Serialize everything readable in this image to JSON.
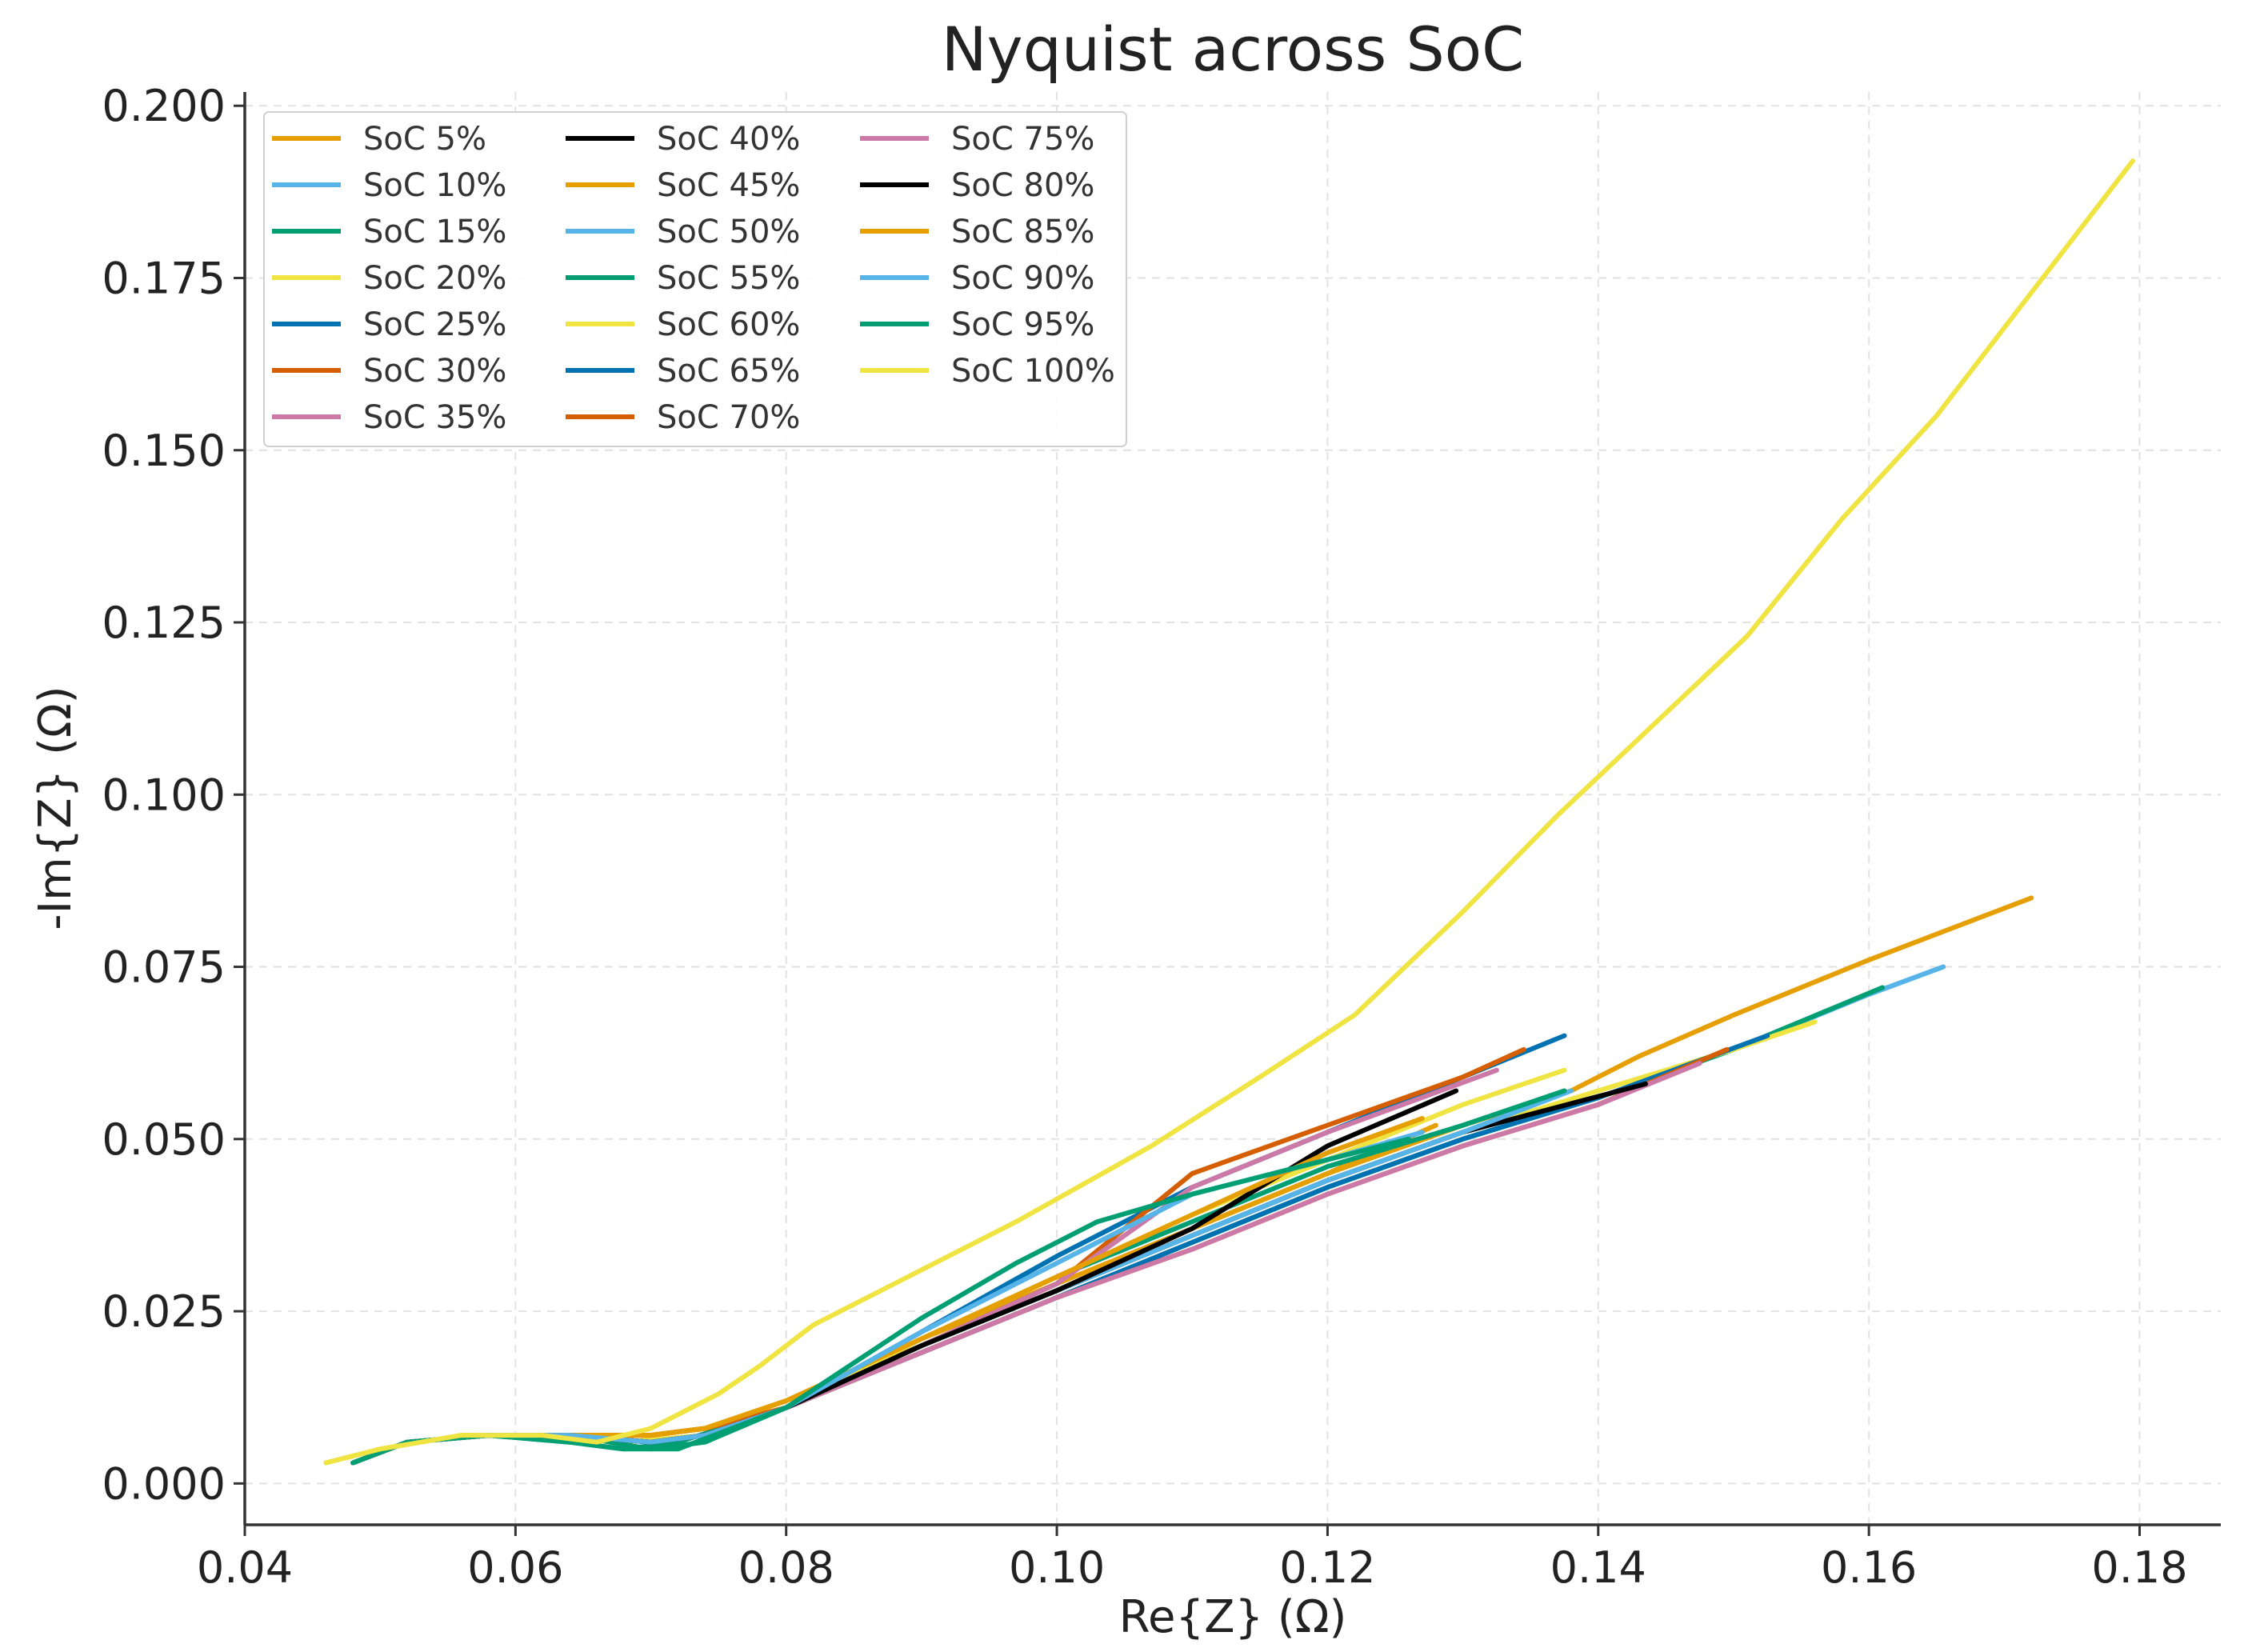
{
  "chart_data": {
    "type": "line",
    "title": "Nyquist across SoC",
    "xlabel": "Re{Z} (Ω)",
    "ylabel": "-Im{Z} (Ω)",
    "xlim": [
      0.04,
      0.186
    ],
    "ylim": [
      -0.006,
      0.202
    ],
    "xticks": [
      0.04,
      0.06,
      0.08,
      0.1,
      0.12,
      0.14,
      0.16,
      0.18
    ],
    "xtick_labels": [
      "0.04",
      "0.06",
      "0.08",
      "0.10",
      "0.12",
      "0.14",
      "0.16",
      "0.18"
    ],
    "yticks": [
      0.0,
      0.025,
      0.05,
      0.075,
      0.1,
      0.125,
      0.15,
      0.175,
      0.2
    ],
    "ytick_labels": [
      "0.000",
      "0.025",
      "0.050",
      "0.075",
      "0.100",
      "0.125",
      "0.150",
      "0.175",
      "0.200"
    ],
    "grid": true,
    "legend_position": "top-left",
    "legend_columns": 3,
    "series": [
      {
        "name": "SoC 5%",
        "color": "#E69F00",
        "x": [
          0.048,
          0.052,
          0.058,
          0.064,
          0.07,
          0.074,
          0.08,
          0.09,
          0.1,
          0.11,
          0.12,
          0.13,
          0.138,
          0.143,
          0.15,
          0.16,
          0.172
        ],
        "y": [
          0.003,
          0.006,
          0.007,
          0.007,
          0.007,
          0.008,
          0.012,
          0.02,
          0.028,
          0.037,
          0.045,
          0.052,
          0.057,
          0.062,
          0.068,
          0.076,
          0.085
        ]
      },
      {
        "name": "SoC 10%",
        "color": "#56B4E9",
        "x": [
          0.048,
          0.052,
          0.058,
          0.064,
          0.07,
          0.074,
          0.08,
          0.09,
          0.1,
          0.11,
          0.12,
          0.13,
          0.14,
          0.15,
          0.16,
          0.1655
        ],
        "y": [
          0.003,
          0.006,
          0.007,
          0.007,
          0.006,
          0.007,
          0.011,
          0.019,
          0.027,
          0.035,
          0.043,
          0.05,
          0.056,
          0.063,
          0.071,
          0.075
        ]
      },
      {
        "name": "SoC 15%",
        "color": "#009E73",
        "x": [
          0.048,
          0.052,
          0.058,
          0.064,
          0.068,
          0.072,
          0.08,
          0.09,
          0.1,
          0.11,
          0.12,
          0.13,
          0.14,
          0.15,
          0.161
        ],
        "y": [
          0.003,
          0.006,
          0.007,
          0.006,
          0.005,
          0.006,
          0.011,
          0.019,
          0.027,
          0.035,
          0.043,
          0.05,
          0.056,
          0.063,
          0.072
        ]
      },
      {
        "name": "SoC 20%",
        "color": "#F0E442",
        "x": [
          0.046,
          0.05,
          0.056,
          0.062,
          0.068,
          0.074,
          0.08,
          0.09,
          0.1,
          0.11,
          0.12,
          0.13,
          0.14,
          0.15,
          0.156
        ],
        "y": [
          0.003,
          0.005,
          0.007,
          0.007,
          0.006,
          0.007,
          0.011,
          0.02,
          0.028,
          0.036,
          0.044,
          0.051,
          0.057,
          0.063,
          0.067
        ]
      },
      {
        "name": "SoC 25%",
        "color": "#0072B2",
        "x": [
          0.048,
          0.052,
          0.058,
          0.064,
          0.07,
          0.074,
          0.08,
          0.09,
          0.1,
          0.11,
          0.12,
          0.13,
          0.14,
          0.1525
        ],
        "y": [
          0.003,
          0.006,
          0.007,
          0.007,
          0.006,
          0.007,
          0.011,
          0.019,
          0.027,
          0.035,
          0.043,
          0.05,
          0.056,
          0.065
        ]
      },
      {
        "name": "SoC 30%",
        "color": "#D55E00",
        "x": [
          0.048,
          0.052,
          0.058,
          0.064,
          0.07,
          0.074,
          0.08,
          0.09,
          0.1,
          0.11,
          0.12,
          0.13,
          0.14,
          0.1495
        ],
        "y": [
          0.003,
          0.006,
          0.007,
          0.007,
          0.007,
          0.008,
          0.011,
          0.019,
          0.027,
          0.034,
          0.042,
          0.049,
          0.055,
          0.063
        ]
      },
      {
        "name": "SoC 35%",
        "color": "#CC79A7",
        "x": [
          0.048,
          0.052,
          0.058,
          0.064,
          0.07,
          0.074,
          0.08,
          0.09,
          0.1,
          0.11,
          0.12,
          0.13,
          0.14,
          0.1475
        ],
        "y": [
          0.003,
          0.006,
          0.007,
          0.007,
          0.006,
          0.007,
          0.011,
          0.019,
          0.027,
          0.034,
          0.042,
          0.049,
          0.055,
          0.061
        ]
      },
      {
        "name": "SoC 40%",
        "color": "#000000",
        "x": [
          0.048,
          0.052,
          0.058,
          0.064,
          0.07,
          0.074,
          0.08,
          0.09,
          0.1,
          0.11,
          0.12,
          0.13,
          0.1435
        ],
        "y": [
          0.003,
          0.006,
          0.007,
          0.007,
          0.006,
          0.007,
          0.011,
          0.02,
          0.028,
          0.036,
          0.044,
          0.051,
          0.058
        ]
      },
      {
        "name": "SoC 45%",
        "color": "#E69F00",
        "x": [
          0.048,
          0.052,
          0.058,
          0.064,
          0.07,
          0.074,
          0.08,
          0.09,
          0.1,
          0.11,
          0.12,
          0.128
        ],
        "y": [
          0.003,
          0.006,
          0.007,
          0.007,
          0.007,
          0.008,
          0.012,
          0.021,
          0.029,
          0.037,
          0.045,
          0.052
        ]
      },
      {
        "name": "SoC 50%",
        "color": "#56B4E9",
        "x": [
          0.048,
          0.052,
          0.058,
          0.064,
          0.07,
          0.074,
          0.08,
          0.09,
          0.1,
          0.11,
          0.12,
          0.13,
          0.138
        ],
        "y": [
          0.003,
          0.006,
          0.007,
          0.007,
          0.006,
          0.007,
          0.011,
          0.02,
          0.028,
          0.036,
          0.044,
          0.051,
          0.057
        ]
      },
      {
        "name": "SoC 55%",
        "color": "#009E73",
        "x": [
          0.048,
          0.052,
          0.058,
          0.064,
          0.07,
          0.074,
          0.08,
          0.09,
          0.1,
          0.11,
          0.12,
          0.13,
          0.1375
        ],
        "y": [
          0.003,
          0.006,
          0.007,
          0.007,
          0.005,
          0.006,
          0.011,
          0.021,
          0.03,
          0.038,
          0.046,
          0.052,
          0.057
        ]
      },
      {
        "name": "SoC 60%",
        "color": "#F0E442",
        "x": [
          0.048,
          0.052,
          0.058,
          0.064,
          0.07,
          0.074,
          0.08,
          0.09,
          0.1,
          0.11,
          0.12,
          0.13,
          0.1375
        ],
        "y": [
          0.003,
          0.006,
          0.007,
          0.007,
          0.007,
          0.008,
          0.011,
          0.021,
          0.03,
          0.039,
          0.047,
          0.055,
          0.06
        ]
      },
      {
        "name": "SoC 65%",
        "color": "#0072B2",
        "x": [
          0.048,
          0.052,
          0.058,
          0.064,
          0.07,
          0.074,
          0.08,
          0.09,
          0.1,
          0.11,
          0.12,
          0.13,
          0.1375
        ],
        "y": [
          0.003,
          0.006,
          0.007,
          0.007,
          0.006,
          0.007,
          0.011,
          0.022,
          0.033,
          0.043,
          0.051,
          0.059,
          0.065
        ]
      },
      {
        "name": "SoC 70%",
        "color": "#D55E00",
        "x": [
          0.048,
          0.052,
          0.058,
          0.064,
          0.07,
          0.074,
          0.08,
          0.09,
          0.1,
          0.11,
          0.12,
          0.13,
          0.1345
        ],
        "y": [
          0.003,
          0.006,
          0.007,
          0.007,
          0.007,
          0.008,
          0.011,
          0.02,
          0.029,
          0.045,
          0.052,
          0.059,
          0.063
        ]
      },
      {
        "name": "SoC 75%",
        "color": "#CC79A7",
        "x": [
          0.048,
          0.052,
          0.058,
          0.064,
          0.07,
          0.074,
          0.08,
          0.09,
          0.1,
          0.11,
          0.12,
          0.1325
        ],
        "y": [
          0.003,
          0.006,
          0.007,
          0.007,
          0.006,
          0.007,
          0.011,
          0.02,
          0.029,
          0.043,
          0.051,
          0.06
        ]
      },
      {
        "name": "SoC 80%",
        "color": "#000000",
        "x": [
          0.048,
          0.052,
          0.058,
          0.064,
          0.07,
          0.074,
          0.08,
          0.09,
          0.1,
          0.11,
          0.12,
          0.1295
        ],
        "y": [
          0.003,
          0.006,
          0.007,
          0.007,
          0.006,
          0.007,
          0.011,
          0.02,
          0.028,
          0.037,
          0.049,
          0.057
        ]
      },
      {
        "name": "SoC 85%",
        "color": "#E69F00",
        "x": [
          0.048,
          0.052,
          0.058,
          0.064,
          0.07,
          0.074,
          0.08,
          0.09,
          0.1,
          0.11,
          0.12,
          0.127
        ],
        "y": [
          0.003,
          0.006,
          0.007,
          0.007,
          0.007,
          0.008,
          0.012,
          0.021,
          0.03,
          0.039,
          0.048,
          0.053
        ]
      },
      {
        "name": "SoC 90%",
        "color": "#56B4E9",
        "x": [
          0.048,
          0.052,
          0.058,
          0.064,
          0.07,
          0.074,
          0.08,
          0.09,
          0.1,
          0.11,
          0.12,
          0.127
        ],
        "y": [
          0.003,
          0.006,
          0.007,
          0.007,
          0.006,
          0.007,
          0.011,
          0.022,
          0.032,
          0.042,
          0.047,
          0.051
        ]
      },
      {
        "name": "SoC 95%",
        "color": "#009E73",
        "x": [
          0.048,
          0.052,
          0.058,
          0.064,
          0.068,
          0.072,
          0.08,
          0.09,
          0.097,
          0.103,
          0.11,
          0.12,
          0.126
        ],
        "y": [
          0.003,
          0.006,
          0.007,
          0.006,
          0.005,
          0.005,
          0.011,
          0.024,
          0.032,
          0.038,
          0.042,
          0.047,
          0.05
        ]
      },
      {
        "name": "SoC 100%",
        "color": "#F0E442",
        "x": [
          0.046,
          0.05,
          0.056,
          0.062,
          0.066,
          0.07,
          0.075,
          0.078,
          0.082,
          0.089,
          0.097,
          0.107,
          0.115,
          0.122,
          0.13,
          0.137,
          0.144,
          0.151,
          0.158,
          0.165,
          0.1795
        ],
        "y": [
          0.003,
          0.005,
          0.007,
          0.007,
          0.006,
          0.008,
          0.013,
          0.017,
          0.023,
          0.03,
          0.038,
          0.049,
          0.059,
          0.068,
          0.083,
          0.097,
          0.11,
          0.123,
          0.14,
          0.155,
          0.192
        ]
      }
    ]
  }
}
